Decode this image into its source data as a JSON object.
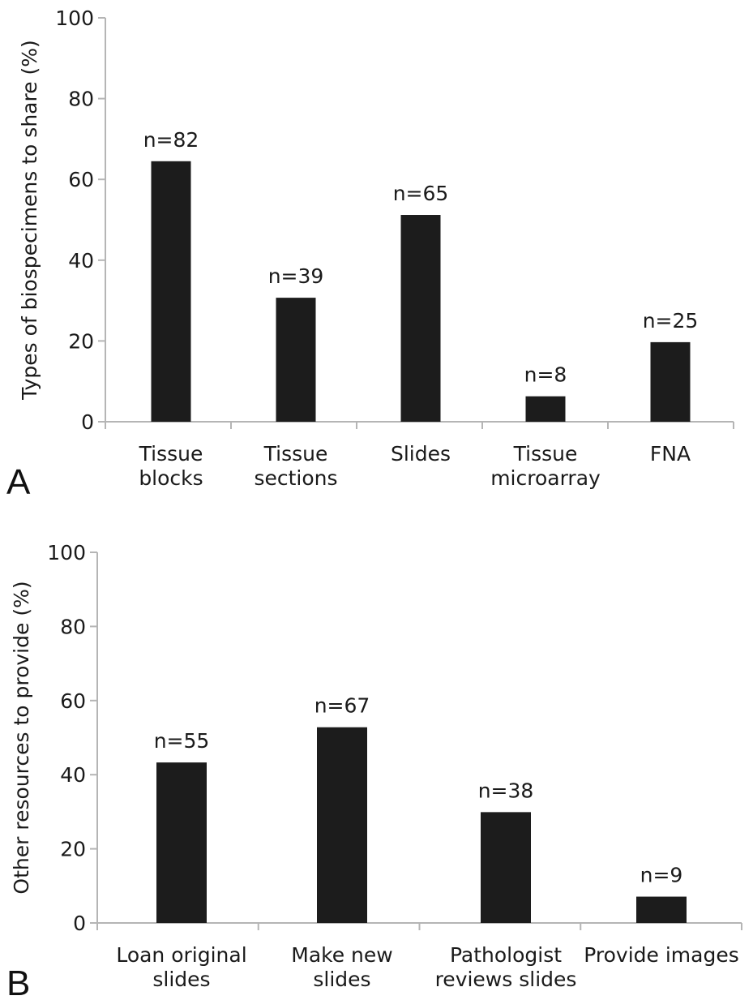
{
  "chart_data": [
    {
      "type": "bar",
      "panel_label": "A",
      "ylabel": "Types of biospecimens to share (%)",
      "ylim": [
        0,
        100
      ],
      "yticks": [
        0,
        20,
        40,
        60,
        80,
        100
      ],
      "grid": false,
      "categories": [
        [
          "Tissue",
          "blocks"
        ],
        [
          "Tissue",
          "sections"
        ],
        [
          "Slides"
        ],
        [
          "Tissue",
          "microarray"
        ],
        [
          "FNA"
        ]
      ],
      "values": [
        64.5,
        30.7,
        51.2,
        6.3,
        19.7
      ],
      "data_labels": [
        "n=82",
        "n=39",
        "n=65",
        "n=8",
        "n=25"
      ]
    },
    {
      "type": "bar",
      "panel_label": "B",
      "ylabel": "Other resources to provide (%)",
      "ylim": [
        0,
        100
      ],
      "yticks": [
        0,
        20,
        40,
        60,
        80,
        100
      ],
      "grid": false,
      "categories": [
        [
          "Loan original",
          "slides"
        ],
        [
          "Make new",
          "slides"
        ],
        [
          "Pathologist",
          "reviews slides"
        ],
        [
          "Provide images"
        ]
      ],
      "values": [
        43.3,
        52.8,
        29.9,
        7.1
      ],
      "data_labels": [
        "n=55",
        "n=67",
        "n=38",
        "n=9"
      ]
    }
  ]
}
